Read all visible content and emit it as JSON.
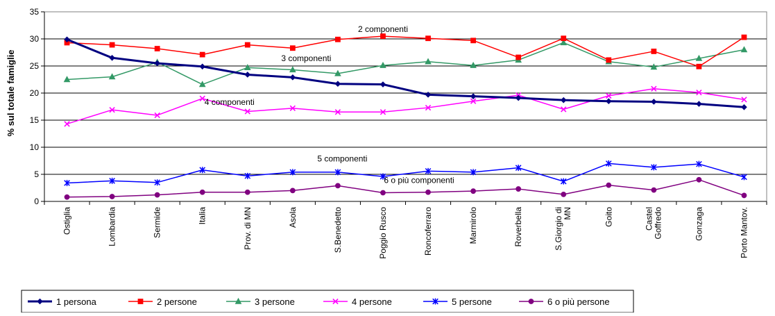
{
  "chart_data": {
    "type": "line",
    "ylabel": "% sul totale famiglie",
    "xlabel": "",
    "ylim": [
      0,
      35
    ],
    "yticks": [
      0,
      5,
      10,
      15,
      20,
      25,
      30,
      35
    ],
    "grid": "horizontal",
    "legend_position": "bottom-left",
    "categories": [
      "Ostiglia",
      "Lombardia",
      "Sermide",
      "Italia",
      "Prov. di MN",
      "Asola",
      "S.Benedetto",
      "Poggio Rusco",
      "Roncoferraro",
      "Marmirolo",
      "Roverbella",
      "S.Giorgio di MN",
      "Goito",
      "Castel Goffredo",
      "Gonzaga",
      "Porto Mantov."
    ],
    "series": [
      {
        "name": "1 persona",
        "color": "#000080",
        "marker": "diamond",
        "values": [
          29.9,
          26.5,
          25.5,
          24.9,
          23.4,
          22.9,
          21.7,
          21.6,
          19.7,
          19.4,
          19.1,
          18.7,
          18.5,
          18.4,
          18.0,
          17.4
        ]
      },
      {
        "name": "2 persone",
        "color": "#ff0000",
        "marker": "square",
        "values": [
          29.3,
          28.9,
          28.2,
          27.1,
          28.9,
          28.3,
          29.9,
          30.5,
          30.1,
          29.7,
          26.6,
          30.1,
          26.1,
          27.7,
          24.9,
          30.3
        ]
      },
      {
        "name": "3 persone",
        "color": "#339966",
        "marker": "triangle",
        "values": [
          22.5,
          23.0,
          25.7,
          21.6,
          24.7,
          24.3,
          23.6,
          25.1,
          25.8,
          25.1,
          26.1,
          29.3,
          25.8,
          24.8,
          26.4,
          28.0
        ]
      },
      {
        "name": "4 persone",
        "color": "#ff00ff",
        "marker": "x",
        "values": [
          14.3,
          16.9,
          15.9,
          19.0,
          16.6,
          17.2,
          16.5,
          16.5,
          17.3,
          18.5,
          19.6,
          17.0,
          19.5,
          20.8,
          20.1,
          18.8
        ]
      },
      {
        "name": "5 persone",
        "color": "#0000ff",
        "marker": "star",
        "values": [
          3.4,
          3.8,
          3.5,
          5.8,
          4.7,
          5.4,
          5.4,
          4.6,
          5.6,
          5.4,
          6.2,
          3.7,
          7.0,
          6.3,
          6.9,
          4.5
        ]
      },
      {
        "name": "6 o più persone",
        "color": "#800080",
        "marker": "circle",
        "values": [
          0.8,
          0.9,
          1.2,
          1.7,
          1.7,
          2.0,
          2.9,
          1.6,
          1.7,
          1.9,
          2.3,
          1.3,
          3.0,
          2.1,
          4.0,
          1.1
        ]
      }
    ],
    "annotations": [
      {
        "text": "2 componenti",
        "x": 7,
        "y": 31.3
      },
      {
        "text": "3 componenti",
        "x": 5.3,
        "y": 25.9
      },
      {
        "text": "4 componenti",
        "x": 3.6,
        "y": 17.8
      },
      {
        "text": "5 componenti",
        "x": 6.1,
        "y": 7.4
      },
      {
        "text": "6 o più componenti",
        "x": 7.8,
        "y": 3.4
      }
    ]
  }
}
